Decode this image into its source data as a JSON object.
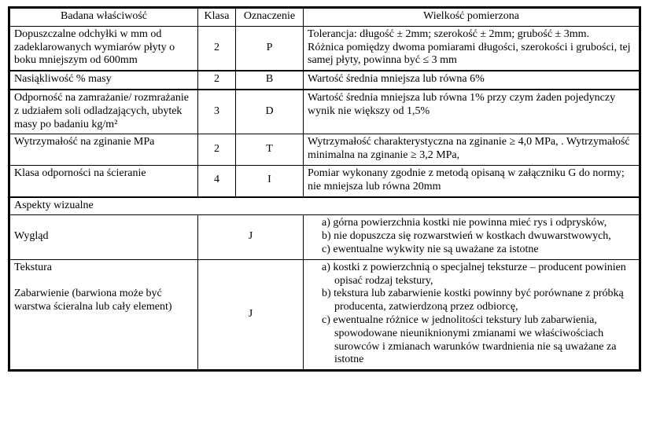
{
  "headers": {
    "c1": "Badana właściwość",
    "c2": "Klasa",
    "c3": "Oznaczenie",
    "c4": "Wielkość pomierzona"
  },
  "rows": [
    {
      "prop": "Dopuszczalne odchyłki w mm od zadeklarowanych wymiarów płyty o boku mniejszym od 600mm",
      "klasa": "2",
      "ozn": "P",
      "val": "Tolerancja: długość ± 2mm; szerokość ± 2mm; grubość ± 3mm.\n Różnica pomiędzy dwoma pomiarami długości, szerokości i grubości, tej samej płyty, powinna być ≤ 3 mm"
    },
    {
      "prop": "Nasiąkliwość % masy",
      "klasa": "2",
      "ozn": "B",
      "val": "Wartość średnia mniejsza lub równa 6%"
    },
    {
      "prop": "Odporność na zamrażanie/ rozmrażanie z udziałem soli odladzających, ubytek masy po badaniu kg/m²",
      "klasa": "3",
      "ozn": "D",
      "val": "Wartość średnia mniejsza lub równa 1% przy czym żaden pojedynczy wynik nie większy od 1,5%"
    },
    {
      "prop": "Wytrzymałość na zginanie MPa",
      "klasa": "2",
      "ozn": "T",
      "val": "Wytrzymałość charakterystyczna na zginanie ≥ 4,0 MPa, . Wytrzymałość minimalna na zginanie ≥ 3,2 MPa,"
    },
    {
      "prop": "Klasa odporności na ścieranie",
      "klasa": "4",
      "ozn": "I",
      "val": "Pomiar wykonany zgodnie z metodą opisaną w załączniku G do normy; nie mniejsza lub równa 20mm"
    }
  ],
  "section_title": " Aspekty wizualne",
  "visual": [
    {
      "prop": "Wygląd",
      "ozn": "J",
      "items": [
        "a) górna powierzchnia kostki nie powinna mieć rys i odprysków,",
        "b) nie dopuszcza się rozwarstwień w kostkach dwuwarstwowych,",
        "c) ewentualne wykwity nie są uważane za istotne"
      ]
    },
    {
      "prop": "Tekstura\n\nZabarwienie (barwiona może być warstwa ścieralna lub cały element)",
      "ozn": "J",
      "items": [
        "a) kostki z powierzchnią o specjalnej teksturze – producent powinien opisać rodzaj tekstury,",
        "b) tekstura lub zabarwienie kostki powinny być porównane z próbką producenta, zatwierdzoną przez odbiorcę,",
        "c) ewentualne różnice w jednolitości tekstury lub zabarwienia, spowodowane nieuniknionymi zmianami we właściwościach surowców i zmianach warunków twardnienia nie są uważane za istotne"
      ]
    }
  ]
}
